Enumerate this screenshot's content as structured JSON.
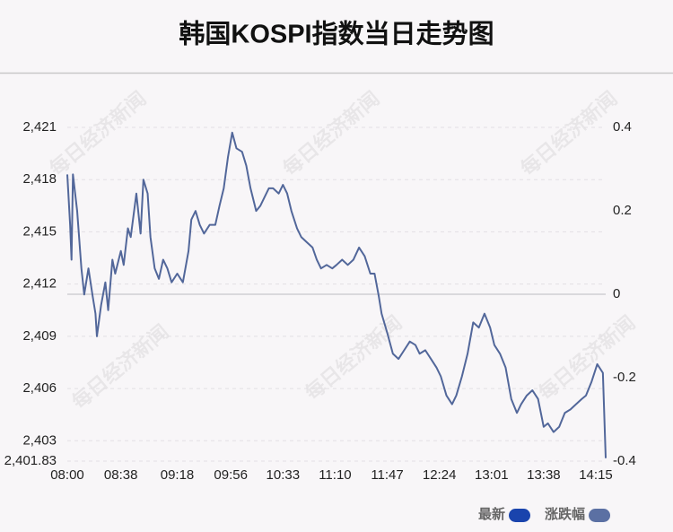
{
  "chart_data": {
    "type": "line",
    "title": "韩国KOSPI指数当日走势图",
    "watermark": "每日经济新闻",
    "x": [
      "08:00",
      "08:02",
      "08:03",
      "08:04",
      "08:07",
      "08:10",
      "08:12",
      "08:15",
      "08:18",
      "08:20",
      "08:21",
      "08:24",
      "08:27",
      "08:29",
      "08:32",
      "08:34",
      "08:38",
      "08:40",
      "08:43",
      "08:45",
      "08:49",
      "08:52",
      "08:54",
      "08:57",
      "08:59",
      "09:02",
      "09:05",
      "09:08",
      "09:11",
      "09:14",
      "09:18",
      "09:22",
      "09:26",
      "09:28",
      "09:31",
      "09:34",
      "09:37",
      "09:41",
      "09:45",
      "09:48",
      "09:51",
      "09:54",
      "09:57",
      "10:00",
      "10:04",
      "10:07",
      "10:10",
      "10:14",
      "10:17",
      "10:20",
      "10:23",
      "10:26",
      "10:30",
      "10:33",
      "10:36",
      "10:39",
      "10:43",
      "10:46",
      "10:50",
      "10:54",
      "10:57",
      "11:00",
      "11:04",
      "11:08",
      "11:11",
      "11:15",
      "11:19",
      "11:23",
      "11:27",
      "11:31",
      "11:35",
      "11:38",
      "11:41",
      "11:43",
      "11:47",
      "11:51",
      "11:55",
      "11:59",
      "12:03",
      "12:07",
      "12:10",
      "12:14",
      "12:18",
      "12:22",
      "12:25",
      "12:29",
      "12:33",
      "12:36",
      "12:40",
      "12:44",
      "12:48",
      "12:52",
      "12:56",
      "13:00",
      "13:03",
      "13:07",
      "13:11",
      "13:15",
      "13:19",
      "13:22",
      "13:26",
      "13:30",
      "13:34",
      "13:38",
      "13:41",
      "13:45",
      "13:49",
      "13:53",
      "13:57",
      "14:01",
      "14:05",
      "14:08",
      "14:12",
      "14:16",
      "14:20",
      "14:22"
    ],
    "series": [
      {
        "name": "最新",
        "color": "#52679a",
        "values": [
          2418.3,
          2415.4,
          2413.4,
          2418.3,
          2416.2,
          2412.9,
          2411.4,
          2412.9,
          2411.3,
          2410.3,
          2409.0,
          2410.8,
          2412.1,
          2410.5,
          2413.4,
          2412.6,
          2413.9,
          2413.1,
          2415.2,
          2414.7,
          2417.2,
          2414.9,
          2418.0,
          2417.2,
          2414.7,
          2412.9,
          2412.3,
          2413.4,
          2412.9,
          2412.1,
          2412.6,
          2412.1,
          2413.9,
          2415.7,
          2416.2,
          2415.4,
          2414.9,
          2415.4,
          2415.4,
          2416.5,
          2417.5,
          2419.3,
          2420.7,
          2419.8,
          2419.6,
          2418.8,
          2417.5,
          2416.2,
          2416.5,
          2417.0,
          2417.5,
          2417.5,
          2417.2,
          2417.7,
          2417.2,
          2416.2,
          2415.2,
          2414.7,
          2414.4,
          2414.1,
          2413.4,
          2412.9,
          2413.1,
          2412.9,
          2413.1,
          2413.4,
          2413.1,
          2413.4,
          2414.1,
          2413.6,
          2412.6,
          2412.6,
          2411.3,
          2410.3,
          2409.2,
          2408.0,
          2407.7,
          2408.2,
          2408.7,
          2408.5,
          2408.0,
          2408.2,
          2407.7,
          2407.2,
          2406.7,
          2405.6,
          2405.1,
          2405.6,
          2406.7,
          2408.0,
          2409.8,
          2409.5,
          2410.3,
          2409.5,
          2408.5,
          2408.0,
          2407.2,
          2405.4,
          2404.6,
          2405.1,
          2405.6,
          2405.9,
          2405.4,
          2403.8,
          2404.0,
          2403.5,
          2403.8,
          2404.6,
          2404.8,
          2405.1,
          2405.4,
          2405.6,
          2406.4,
          2407.4,
          2406.9,
          2402.0
        ]
      }
    ],
    "legend": [
      {
        "name": "最新",
        "color": "#1a44ad"
      },
      {
        "name": "涨跌幅",
        "color": "#5b70a3"
      }
    ],
    "xlim": [
      "08:00",
      "14:22"
    ],
    "xticks": [
      "08:00",
      "08:38",
      "09:18",
      "09:56",
      "10:33",
      "11:10",
      "11:47",
      "12:24",
      "13:01",
      "13:38",
      "14:15"
    ],
    "ylim": [
      2401.83,
      2421
    ],
    "yticks": [
      {
        "value": 2421,
        "label": "2,421"
      },
      {
        "value": 2418,
        "label": "2,418"
      },
      {
        "value": 2415,
        "label": "2,415"
      },
      {
        "value": 2412,
        "label": "2,412"
      },
      {
        "value": 2409,
        "label": "2,409"
      },
      {
        "value": 2406,
        "label": "2,406"
      },
      {
        "value": 2403,
        "label": "2,403"
      },
      {
        "value": 2401.83,
        "label": "2,401.83"
      }
    ],
    "y2lim": [
      -0.4,
      0.4
    ],
    "y2ticks": [
      0.4,
      0.2,
      0,
      -0.2,
      -0.4
    ],
    "grid": true
  }
}
